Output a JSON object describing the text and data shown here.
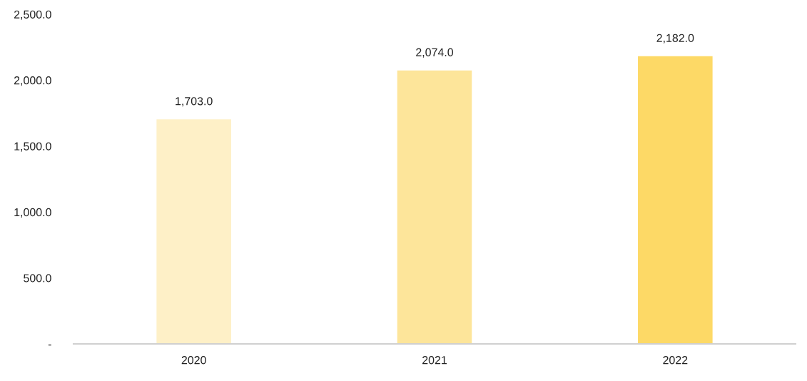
{
  "chart_data": {
    "type": "bar",
    "categories": [
      "2020",
      "2021",
      "2022"
    ],
    "values": [
      1703,
      2074,
      2182
    ],
    "colors": [
      "#fef0c7",
      "#fde59a",
      "#fdd966"
    ],
    "value_labels": [
      "1,703.0",
      "2,074.0",
      "2,182.0"
    ],
    "ylim": [
      0,
      2500
    ],
    "yticks": [
      {
        "value": 0,
        "label": "-"
      },
      {
        "value": 500,
        "label": "500.0"
      },
      {
        "value": 1000,
        "label": "1,000.0"
      },
      {
        "value": 1500,
        "label": "1,500.0"
      },
      {
        "value": 2000,
        "label": "2,000.0"
      },
      {
        "value": 2500,
        "label": "2,500.0"
      }
    ],
    "grid": false,
    "legend": false
  }
}
